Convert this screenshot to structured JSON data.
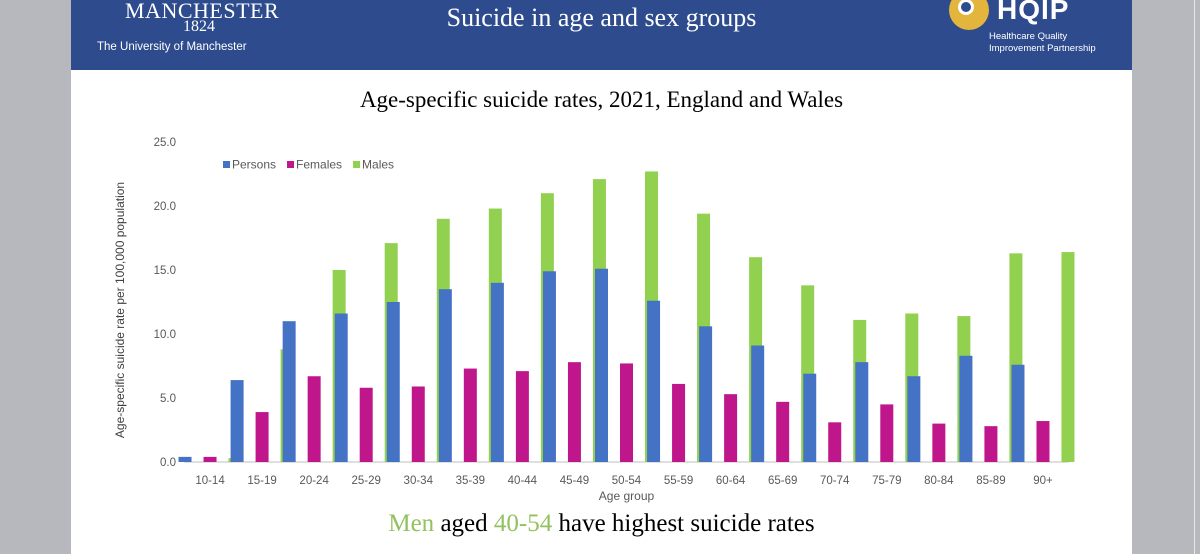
{
  "header": {
    "uni_name": "MANCHESTER",
    "uni_year": "1824",
    "uni_sub": "The University of Manchester",
    "title": "Suicide in age and sex groups",
    "hqip_name": "HQIP",
    "hqip_sub_1": "Healthcare Quality",
    "hqip_sub_2": "Improvement Partnership"
  },
  "footer": {
    "word_men": "Men",
    "word_aged": "aged",
    "word_range": "40-54",
    "word_rest": "have highest suicide rates"
  },
  "colors": {
    "persons": "#4472c4",
    "females": "#c0168c",
    "males": "#92d050",
    "header": "#2e4c8d",
    "accent": "#92c160"
  },
  "chart_data": {
    "type": "bar",
    "title": "Age-specific suicide rates, 2021, England and Wales",
    "xlabel": "Age group",
    "ylabel": "Age-specific suicide rate per 100,000 population",
    "ylim": [
      0,
      25
    ],
    "yticks": [
      "0.0",
      "5.0",
      "10.0",
      "15.0",
      "20.0",
      "25.0"
    ],
    "grid": false,
    "legend_position": "top-left",
    "categories": [
      "10-14",
      "15-19",
      "20-24",
      "25-29",
      "30-34",
      "35-39",
      "40-44",
      "45-49",
      "50-54",
      "55-59",
      "60-64",
      "65-69",
      "70-74",
      "75-79",
      "80-84",
      "85-89",
      "90+"
    ],
    "series": [
      {
        "name": "Persons",
        "color": "#4472c4",
        "values": [
          0.4,
          6.4,
          11.0,
          11.6,
          12.5,
          13.5,
          14.0,
          14.9,
          15.1,
          12.6,
          10.6,
          9.1,
          6.9,
          7.8,
          6.7,
          8.3,
          7.6
        ]
      },
      {
        "name": "Females",
        "color": "#c0168c",
        "values": [
          0.4,
          3.9,
          6.7,
          5.8,
          5.9,
          7.3,
          7.1,
          7.8,
          7.7,
          6.1,
          5.3,
          4.7,
          3.1,
          4.5,
          3.0,
          2.8,
          3.2
        ]
      },
      {
        "name": "Males",
        "color": "#92d050",
        "values": [
          0.3,
          8.8,
          15.0,
          17.1,
          19.0,
          19.8,
          21.0,
          22.1,
          22.7,
          19.4,
          16.0,
          13.8,
          11.1,
          11.6,
          11.4,
          16.3,
          16.4
        ]
      }
    ]
  }
}
